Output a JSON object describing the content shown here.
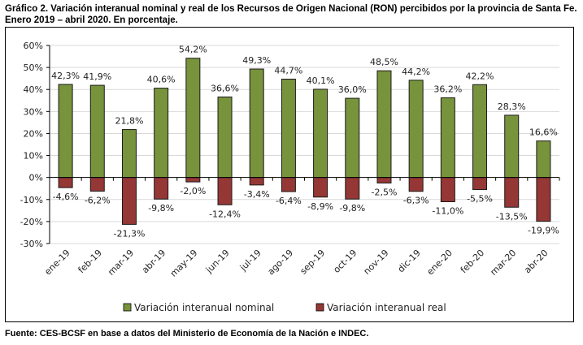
{
  "title": "Gráfico 2. Variación interanual nominal y real de los Recursos de Origen Nacional (RON) percibidos por la provincia de Santa Fe. Enero 2019 – abril 2020. En porcentaje.",
  "source": "Fuente: CES-BCSF en base a datos del Ministerio de Economía de la Nación e INDEC.",
  "chart_data": {
    "type": "bar",
    "title": "Variación interanual nominal y real de los Recursos de Origen Nacional (RON) percibidos por la provincia de Santa Fe. Enero 2019 – abril 2020. En porcentaje.",
    "xlabel": "",
    "ylabel": "",
    "categories": [
      "ene-19",
      "feb-19",
      "mar-19",
      "abr-19",
      "may-19",
      "jun-19",
      "jul-19",
      "ago-19",
      "sep-19",
      "oct-19",
      "nov-19",
      "dic-19",
      "ene-20",
      "feb-20",
      "mar-20",
      "abr-20"
    ],
    "series": [
      {
        "name": "Variación interanual nominal",
        "color": "#77933C",
        "values": [
          42.3,
          41.9,
          21.8,
          40.6,
          54.2,
          36.6,
          49.3,
          44.7,
          40.1,
          36.0,
          48.5,
          44.2,
          36.2,
          42.2,
          28.3,
          16.6
        ],
        "labels": [
          "42,3%",
          "41,9%",
          "21,8%",
          "40,6%",
          "54,2%",
          "36,6%",
          "49,3%",
          "44,7%",
          "40,1%",
          "36,0%",
          "48,5%",
          "44,2%",
          "36,2%",
          "42,2%",
          "28,3%",
          "16,6%"
        ]
      },
      {
        "name": "Variación interanual real",
        "color": "#953735",
        "values": [
          -4.6,
          -6.2,
          -21.3,
          -9.8,
          -2.0,
          -12.4,
          -3.4,
          -6.4,
          -8.9,
          -9.8,
          -2.5,
          -6.3,
          -11.0,
          -5.5,
          -13.5,
          -19.9
        ],
        "labels": [
          "-4,6%",
          "-6,2%",
          "-21,3%",
          "-9,8%",
          "-2,0%",
          "-12,4%",
          "-3,4%",
          "-6,4%",
          "-8,9%",
          "-9,8%",
          "-2,5%",
          "-6,3%",
          "-11,0%",
          "-5,5%",
          "-13,5%",
          "-19,9%"
        ]
      }
    ],
    "ylim": [
      -30,
      60
    ],
    "yticks": [
      60,
      50,
      40,
      30,
      20,
      10,
      0,
      -10,
      -20,
      -30
    ],
    "ytick_labels": [
      "60%",
      "50%",
      "40%",
      "30%",
      "20%",
      "10%",
      "0%",
      "-10%",
      "-20%",
      "-30%"
    ],
    "grid": true,
    "overlap": true,
    "legend_position": "bottom"
  }
}
